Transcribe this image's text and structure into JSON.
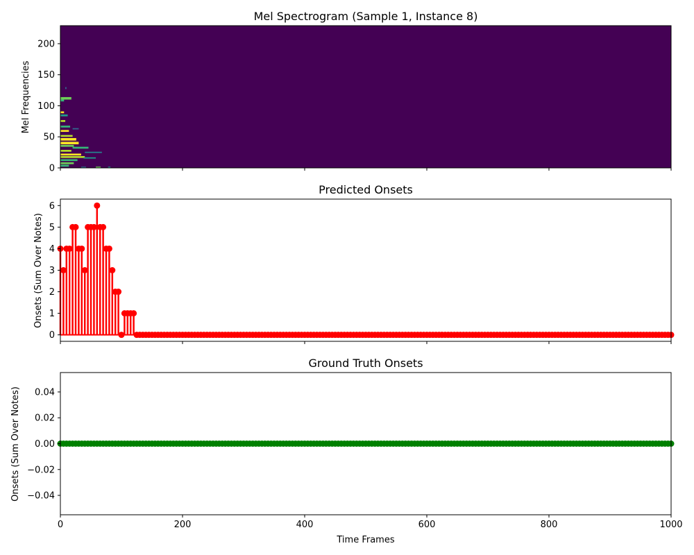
{
  "chart_data": [
    {
      "type": "heatmap",
      "title": "Mel Spectrogram (Sample 1, Instance 8)",
      "xlabel": "",
      "ylabel": "Mel Frequencies",
      "xlim": [
        0,
        1000
      ],
      "ylim": [
        0,
        229
      ],
      "xticks": [
        0,
        200,
        400,
        600,
        800,
        1000
      ],
      "yticks": [
        "0",
        "50",
        "100",
        "150",
        "200"
      ],
      "yticks_values": [
        0,
        50,
        100,
        150,
        200
      ],
      "colormap": "viridis",
      "background_color": "#440154",
      "energy_cells": [
        {
          "x0": 0,
          "x1": 6,
          "y0": 107,
          "y1": 110,
          "color": "#35b779"
        },
        {
          "x0": 0,
          "x1": 18,
          "y0": 110,
          "y1": 114,
          "color": "#6ece58"
        },
        {
          "x0": 0,
          "x1": 6,
          "y0": 88,
          "y1": 91,
          "color": "#fde725"
        },
        {
          "x0": 0,
          "x1": 12,
          "y0": 83,
          "y1": 86,
          "color": "#1f9e89"
        },
        {
          "x0": 0,
          "x1": 8,
          "y0": 74,
          "y1": 77,
          "color": "#b5de2b"
        },
        {
          "x0": 0,
          "x1": 16,
          "y0": 65,
          "y1": 68,
          "color": "#35b779"
        },
        {
          "x0": 20,
          "x1": 30,
          "y0": 62,
          "y1": 64,
          "color": "#31688e"
        },
        {
          "x0": 0,
          "x1": 14,
          "y0": 58,
          "y1": 61,
          "color": "#fde725"
        },
        {
          "x0": 0,
          "x1": 20,
          "y0": 50,
          "y1": 53,
          "color": "#b5de2b"
        },
        {
          "x0": 0,
          "x1": 26,
          "y0": 44,
          "y1": 48,
          "color": "#fde725"
        },
        {
          "x0": 0,
          "x1": 30,
          "y0": 38,
          "y1": 42,
          "color": "#fde725"
        },
        {
          "x0": 0,
          "x1": 22,
          "y0": 34,
          "y1": 37,
          "color": "#6ece58"
        },
        {
          "x0": 20,
          "x1": 46,
          "y0": 31,
          "y1": 34,
          "color": "#35b779"
        },
        {
          "x0": 0,
          "x1": 18,
          "y0": 26,
          "y1": 29,
          "color": "#b5de2b"
        },
        {
          "x0": 40,
          "x1": 68,
          "y0": 24,
          "y1": 26,
          "color": "#26828e"
        },
        {
          "x0": 0,
          "x1": 34,
          "y0": 20,
          "y1": 23,
          "color": "#fde725"
        },
        {
          "x0": 0,
          "x1": 40,
          "y0": 16,
          "y1": 19,
          "color": "#b5de2b"
        },
        {
          "x0": 38,
          "x1": 58,
          "y0": 15,
          "y1": 17,
          "color": "#1f9e89"
        },
        {
          "x0": 0,
          "x1": 28,
          "y0": 11,
          "y1": 14,
          "color": "#35b779"
        },
        {
          "x0": 0,
          "x1": 22,
          "y0": 6,
          "y1": 9,
          "color": "#6ece58"
        },
        {
          "x0": 0,
          "x1": 14,
          "y0": 2,
          "y1": 5,
          "color": "#35b779"
        },
        {
          "x0": 34,
          "x1": 42,
          "y0": 0,
          "y1": 2,
          "color": "#31688e"
        },
        {
          "x0": 58,
          "x1": 66,
          "y0": 0,
          "y1": 2,
          "color": "#6ece58"
        },
        {
          "x0": 78,
          "x1": 82,
          "y0": 0,
          "y1": 2,
          "color": "#26828e"
        },
        {
          "x0": 8,
          "x1": 10,
          "y0": 127,
          "y1": 130,
          "color": "#31688e"
        }
      ]
    },
    {
      "type": "stem",
      "title": "Predicted Onsets",
      "xlabel": "",
      "ylabel": "Onsets (Sum Over Notes)",
      "xlim": [
        0,
        1000
      ],
      "ylim": [
        -0.3,
        6.3
      ],
      "xticks": [
        0,
        200,
        400,
        600,
        800,
        1000
      ],
      "yticks": [
        "0",
        "1",
        "2",
        "3",
        "4",
        "5",
        "6"
      ],
      "yticks_values": [
        0,
        1,
        2,
        3,
        4,
        5,
        6
      ],
      "color": "#ff0000",
      "step": 5,
      "values": [
        4,
        3,
        4,
        4,
        5,
        5,
        4,
        4,
        3,
        5,
        5,
        5,
        6,
        5,
        5,
        4,
        4,
        3,
        2,
        2,
        0,
        1,
        1,
        1,
        1
      ],
      "trailing_value": 0
    },
    {
      "type": "stem",
      "title": "Ground Truth Onsets",
      "xlabel": "Time Frames",
      "ylabel": "Onsets (Sum Over Notes)",
      "xlim": [
        0,
        1000
      ],
      "ylim": [
        -0.055,
        0.055
      ],
      "xticks": [
        0,
        200,
        400,
        600,
        800,
        1000
      ],
      "yticks": [
        "−0.04",
        "−0.02",
        "0.00",
        "0.02",
        "0.04"
      ],
      "yticks_values": [
        -0.04,
        -0.02,
        0,
        0.02,
        0.04
      ],
      "color": "#008000",
      "step": 5,
      "values": [],
      "trailing_value": 0
    }
  ]
}
